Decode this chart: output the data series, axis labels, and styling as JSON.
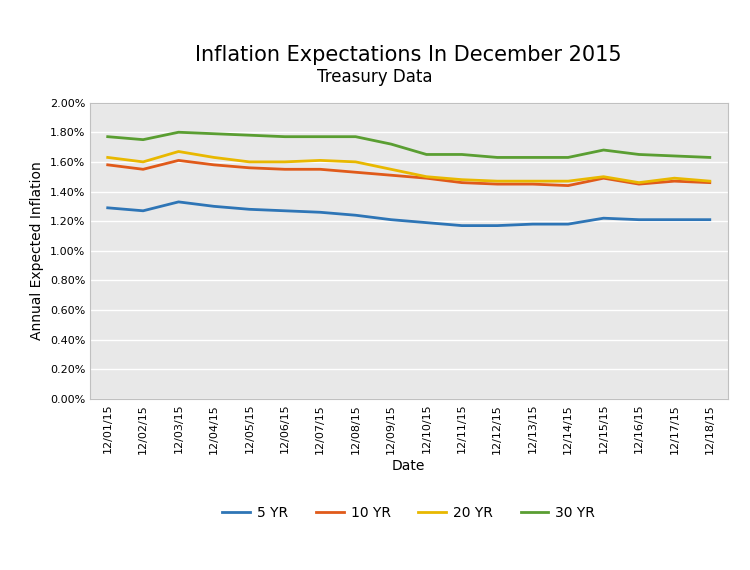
{
  "title": "Inflation Expectations In December 2015",
  "subtitle": "Treasury Data",
  "xlabel": "Date",
  "ylabel": "Annual Expected Inflation",
  "dates": [
    "12/01/15",
    "12/02/15",
    "12/03/15",
    "12/04/15",
    "12/05/15",
    "12/06/15",
    "12/07/15",
    "12/08/15",
    "12/09/15",
    "12/10/15",
    "12/11/15",
    "12/12/15",
    "12/13/15",
    "12/14/15",
    "12/15/15",
    "12/16/15",
    "12/17/15",
    "12/18/15"
  ],
  "series_5yr": [
    0.0129,
    0.0127,
    0.0133,
    0.013,
    0.0128,
    0.0127,
    0.0126,
    0.0124,
    0.0121,
    0.0119,
    0.0117,
    0.0117,
    0.0118,
    0.0118,
    0.0122,
    0.0121,
    0.0121,
    0.0121
  ],
  "series_10yr": [
    0.0158,
    0.0155,
    0.0161,
    0.0158,
    0.0156,
    0.0155,
    0.0155,
    0.0153,
    0.0151,
    0.0149,
    0.0146,
    0.0145,
    0.0145,
    0.0144,
    0.0149,
    0.0145,
    0.0147,
    0.0146
  ],
  "series_20yr": [
    0.0163,
    0.016,
    0.0167,
    0.0163,
    0.016,
    0.016,
    0.0161,
    0.016,
    0.0155,
    0.015,
    0.0148,
    0.0147,
    0.0147,
    0.0147,
    0.015,
    0.0146,
    0.0149,
    0.0147
  ],
  "series_30yr": [
    0.0177,
    0.0175,
    0.018,
    0.0179,
    0.0178,
    0.0177,
    0.0177,
    0.0177,
    0.0172,
    0.0165,
    0.0165,
    0.0163,
    0.0163,
    0.0163,
    0.0168,
    0.0165,
    0.0164,
    0.0163
  ],
  "color_5yr": "#2e75b6",
  "color_10yr": "#e05a1a",
  "color_20yr": "#e8b800",
  "color_30yr": "#5a9e32",
  "ylim": [
    0.0,
    0.02
  ],
  "ytick_step": 0.002,
  "line_width": 2.0,
  "plot_bg_color": "#e8e8e8",
  "fig_bg_color": "#ffffff",
  "grid_color": "#ffffff",
  "legend_labels": [
    "5 YR",
    "10 YR",
    "20 YR",
    "30 YR"
  ],
  "title_fontsize": 15,
  "subtitle_fontsize": 12,
  "axis_label_fontsize": 10,
  "tick_fontsize": 8,
  "legend_fontsize": 10
}
